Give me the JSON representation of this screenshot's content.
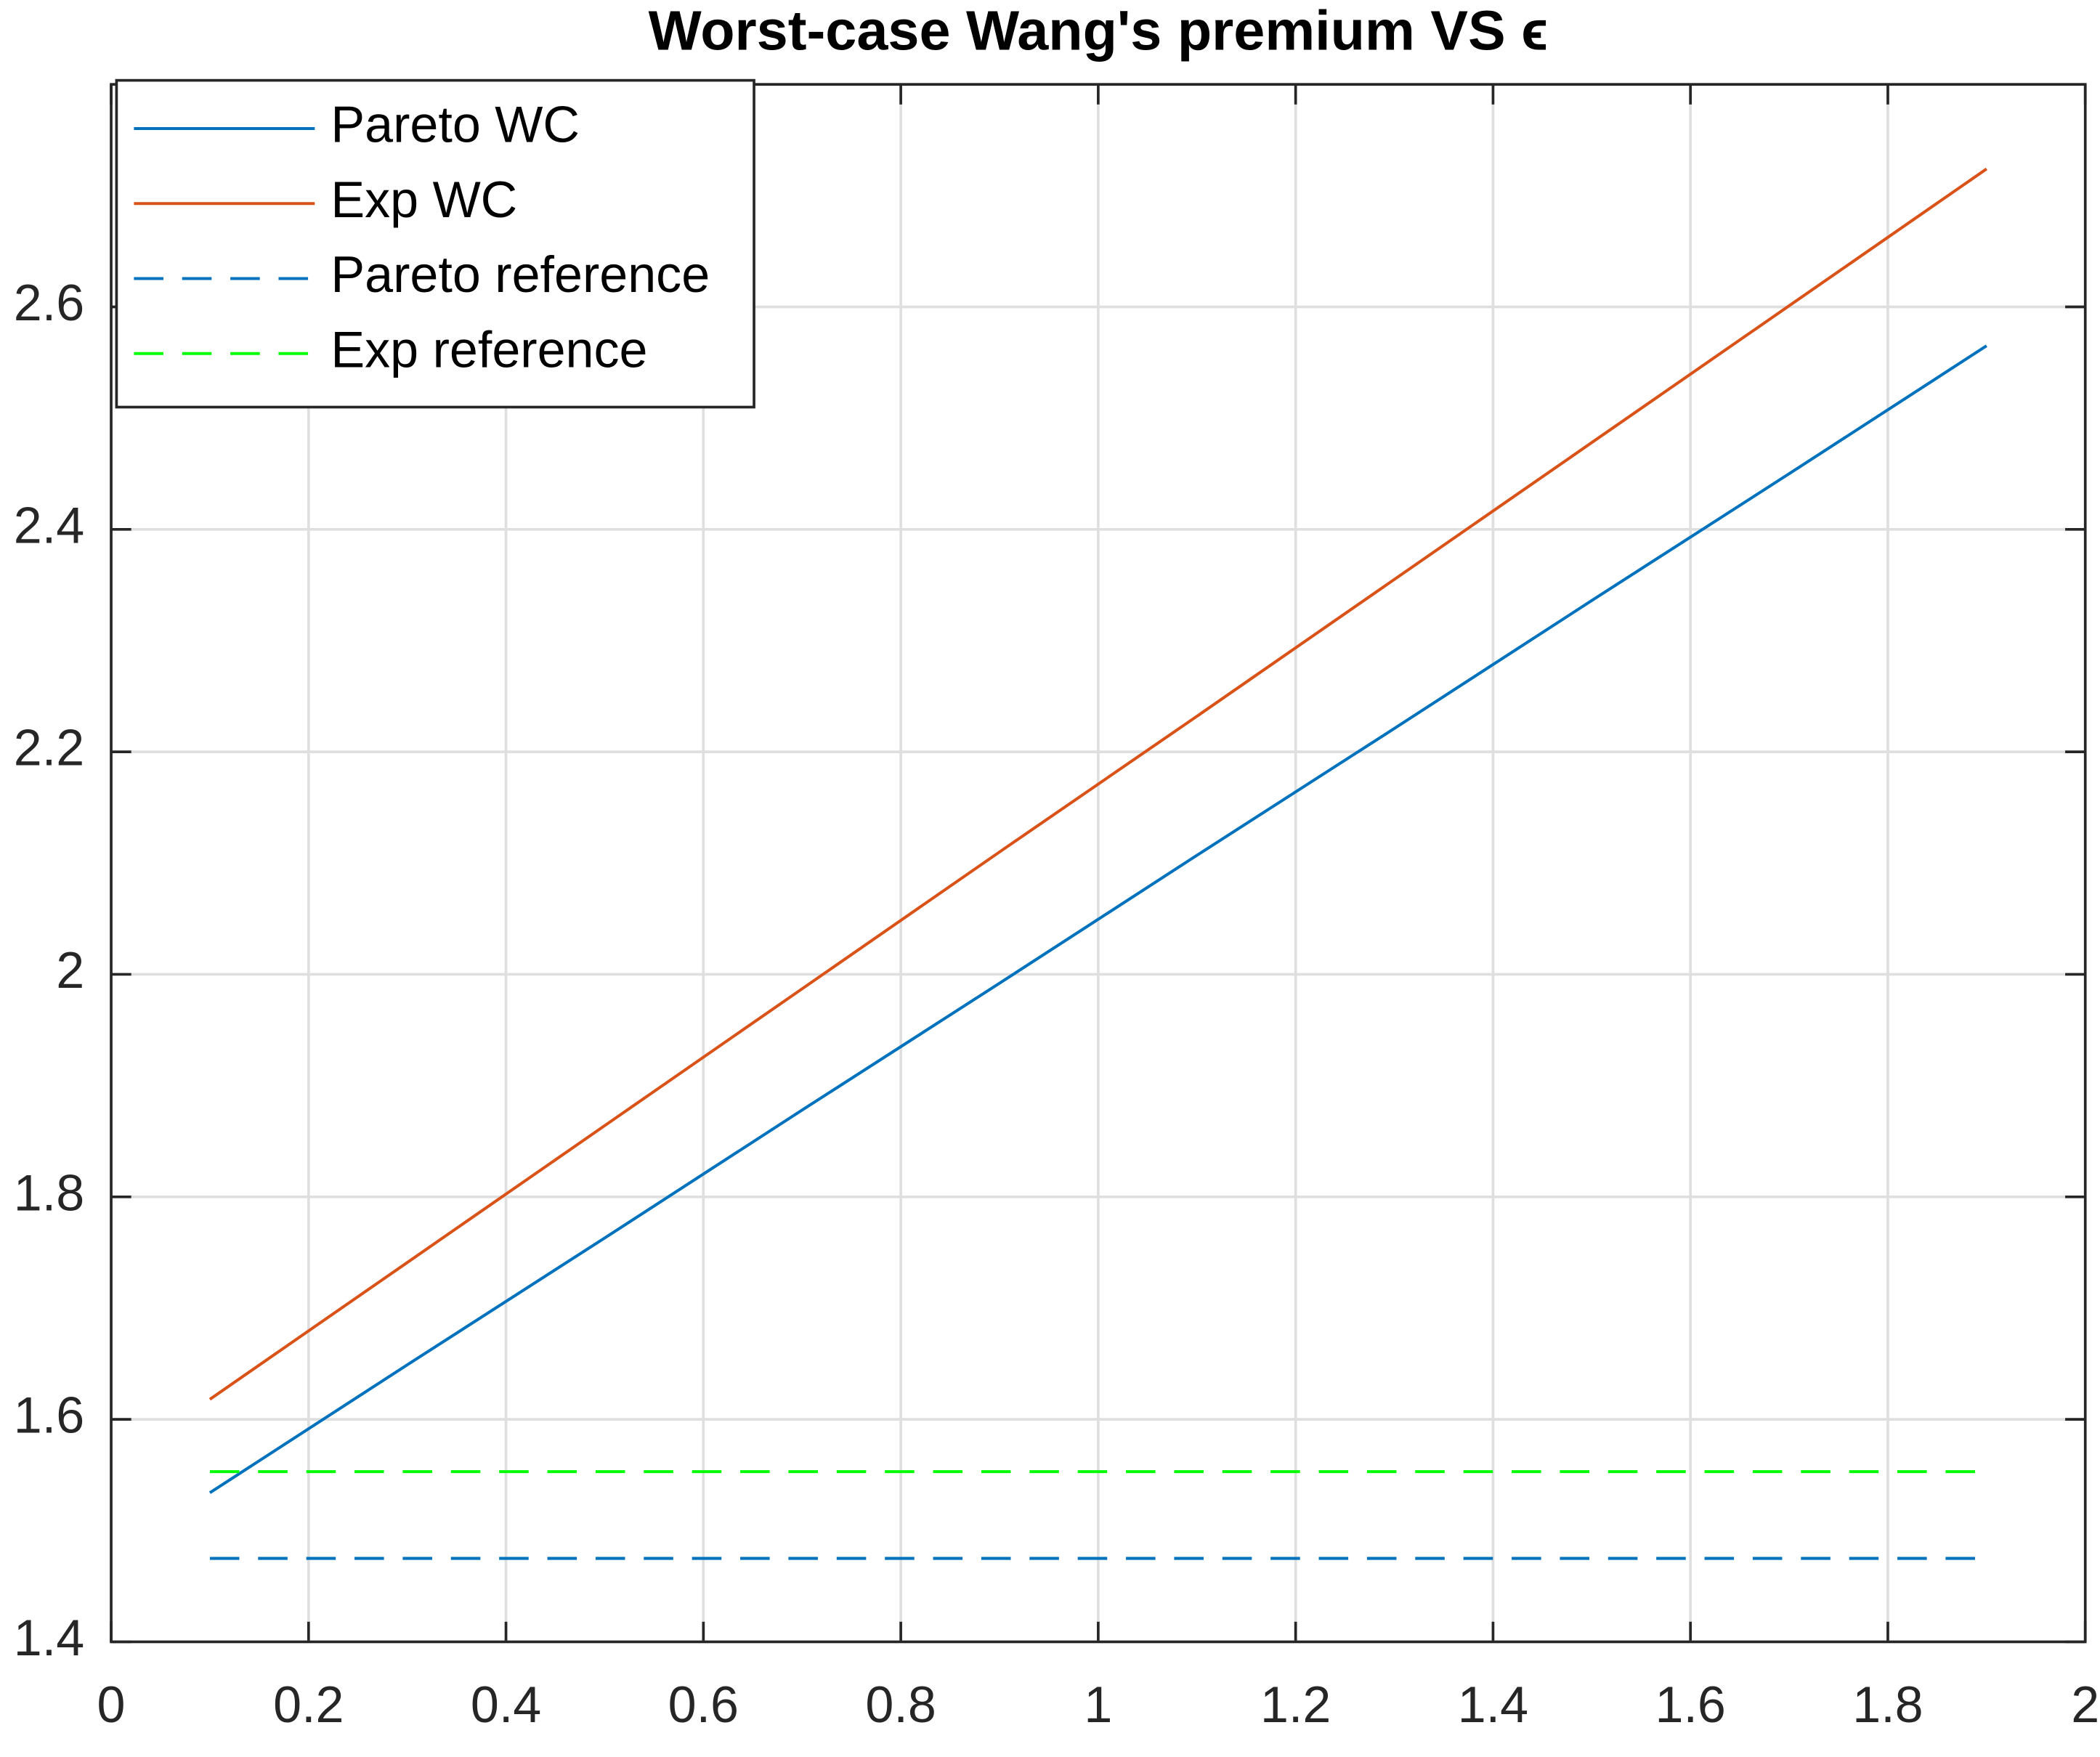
{
  "chart_data": {
    "type": "line",
    "title": "Worst-case Wang's premium VS ϵ",
    "x": [
      0.1,
      0.3,
      0.5,
      0.7,
      0.9,
      1.1,
      1.3,
      1.5,
      1.7,
      1.9
    ],
    "series": [
      {
        "name": "Pareto WC",
        "color": "#0072bd",
        "dash": false,
        "values": [
          1.534,
          1.649,
          1.763,
          1.878,
          1.992,
          2.107,
          2.221,
          2.336,
          2.45,
          2.565
        ]
      },
      {
        "name": "Exp WC",
        "color": "#d95319",
        "dash": false,
        "values": [
          1.618,
          1.741,
          1.864,
          1.987,
          2.11,
          2.232,
          2.355,
          2.478,
          2.601,
          2.724
        ]
      },
      {
        "name": "Pareto reference",
        "color": "#0072bd",
        "dash": true,
        "values": [
          1.475,
          1.475,
          1.475,
          1.475,
          1.475,
          1.475,
          1.475,
          1.475,
          1.475,
          1.475
        ]
      },
      {
        "name": "Exp reference",
        "color": "#00ff00",
        "dash": true,
        "values": [
          1.553,
          1.553,
          1.553,
          1.553,
          1.553,
          1.553,
          1.553,
          1.553,
          1.553,
          1.553
        ]
      }
    ],
    "xlim": [
      0,
      2
    ],
    "xticks": [
      0,
      0.2,
      0.4,
      0.6,
      0.8,
      1,
      1.2,
      1.4,
      1.6,
      1.8,
      2
    ],
    "ylim": [
      1.4,
      2.8
    ],
    "yticks": [
      1.4,
      1.6,
      1.8,
      2,
      2.2,
      2.4,
      2.6
    ],
    "grid": true,
    "legend": "upper-left"
  }
}
